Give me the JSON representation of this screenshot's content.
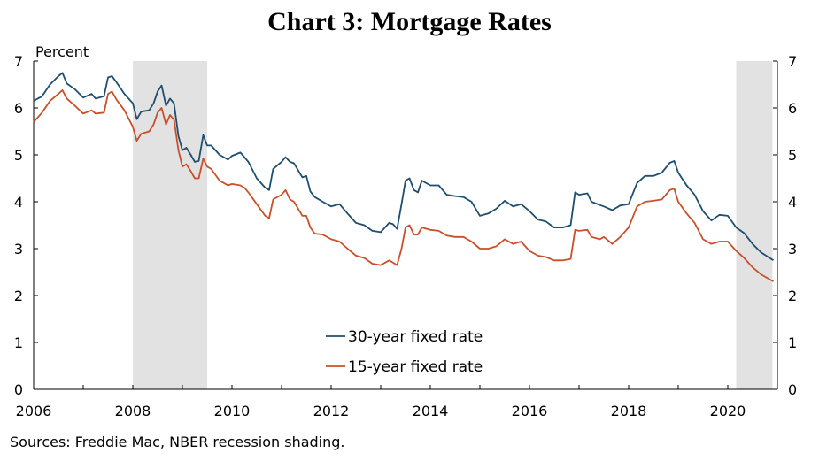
{
  "chart_data": {
    "type": "line",
    "title": "Chart 3: Mortgage Rates",
    "ylabel": "Percent",
    "source": "Sources: Freddie Mac, NBER recession shading.",
    "xlim": [
      2006.0,
      2021.0
    ],
    "ylim": [
      0,
      7
    ],
    "x_ticks": [
      2006,
      2008,
      2010,
      2012,
      2014,
      2016,
      2018,
      2020
    ],
    "y_ticks": [
      0,
      1,
      2,
      3,
      4,
      5,
      6,
      7
    ],
    "grid": false,
    "legend_position": "bottom-center",
    "recessions": [
      {
        "start": 2008.0,
        "end": 2009.5
      },
      {
        "start": 2020.17,
        "end": 2020.9
      }
    ],
    "series": [
      {
        "name": "30-year fixed rate",
        "color": "#1f4e6e",
        "points": [
          [
            2006.0,
            6.15
          ],
          [
            2006.17,
            6.25
          ],
          [
            2006.33,
            6.5
          ],
          [
            2006.5,
            6.68
          ],
          [
            2006.58,
            6.75
          ],
          [
            2006.67,
            6.52
          ],
          [
            2006.83,
            6.4
          ],
          [
            2007.0,
            6.22
          ],
          [
            2007.17,
            6.3
          ],
          [
            2007.25,
            6.2
          ],
          [
            2007.42,
            6.25
          ],
          [
            2007.5,
            6.65
          ],
          [
            2007.58,
            6.68
          ],
          [
            2007.67,
            6.55
          ],
          [
            2007.83,
            6.3
          ],
          [
            2008.0,
            6.1
          ],
          [
            2008.08,
            5.76
          ],
          [
            2008.17,
            5.92
          ],
          [
            2008.33,
            5.95
          ],
          [
            2008.42,
            6.1
          ],
          [
            2008.5,
            6.35
          ],
          [
            2008.58,
            6.48
          ],
          [
            2008.67,
            6.05
          ],
          [
            2008.75,
            6.2
          ],
          [
            2008.83,
            6.1
          ],
          [
            2008.92,
            5.4
          ],
          [
            2009.0,
            5.1
          ],
          [
            2009.08,
            5.15
          ],
          [
            2009.17,
            5.0
          ],
          [
            2009.25,
            4.85
          ],
          [
            2009.33,
            4.87
          ],
          [
            2009.42,
            5.42
          ],
          [
            2009.5,
            5.2
          ],
          [
            2009.58,
            5.2
          ],
          [
            2009.75,
            5.0
          ],
          [
            2009.92,
            4.9
          ],
          [
            2010.0,
            4.98
          ],
          [
            2010.17,
            5.05
          ],
          [
            2010.25,
            4.95
          ],
          [
            2010.33,
            4.85
          ],
          [
            2010.5,
            4.5
          ],
          [
            2010.67,
            4.3
          ],
          [
            2010.75,
            4.25
          ],
          [
            2010.83,
            4.7
          ],
          [
            2011.0,
            4.85
          ],
          [
            2011.08,
            4.95
          ],
          [
            2011.17,
            4.85
          ],
          [
            2011.25,
            4.82
          ],
          [
            2011.42,
            4.52
          ],
          [
            2011.5,
            4.55
          ],
          [
            2011.58,
            4.22
          ],
          [
            2011.67,
            4.1
          ],
          [
            2011.83,
            4.0
          ],
          [
            2012.0,
            3.9
          ],
          [
            2012.17,
            3.95
          ],
          [
            2012.33,
            3.75
          ],
          [
            2012.5,
            3.55
          ],
          [
            2012.67,
            3.5
          ],
          [
            2012.83,
            3.38
          ],
          [
            2013.0,
            3.35
          ],
          [
            2013.17,
            3.55
          ],
          [
            2013.25,
            3.52
          ],
          [
            2013.33,
            3.42
          ],
          [
            2013.42,
            3.95
          ],
          [
            2013.5,
            4.45
          ],
          [
            2013.58,
            4.5
          ],
          [
            2013.67,
            4.25
          ],
          [
            2013.75,
            4.2
          ],
          [
            2013.83,
            4.45
          ],
          [
            2014.0,
            4.35
          ],
          [
            2014.17,
            4.35
          ],
          [
            2014.33,
            4.15
          ],
          [
            2014.5,
            4.12
          ],
          [
            2014.67,
            4.1
          ],
          [
            2014.83,
            4.0
          ],
          [
            2015.0,
            3.7
          ],
          [
            2015.17,
            3.75
          ],
          [
            2015.33,
            3.85
          ],
          [
            2015.5,
            4.02
          ],
          [
            2015.67,
            3.9
          ],
          [
            2015.83,
            3.95
          ],
          [
            2016.0,
            3.8
          ],
          [
            2016.17,
            3.62
          ],
          [
            2016.33,
            3.58
          ],
          [
            2016.5,
            3.45
          ],
          [
            2016.67,
            3.45
          ],
          [
            2016.83,
            3.5
          ],
          [
            2016.92,
            4.2
          ],
          [
            2017.0,
            4.15
          ],
          [
            2017.17,
            4.18
          ],
          [
            2017.25,
            4.0
          ],
          [
            2017.42,
            3.93
          ],
          [
            2017.5,
            3.9
          ],
          [
            2017.67,
            3.82
          ],
          [
            2017.83,
            3.92
          ],
          [
            2018.0,
            3.95
          ],
          [
            2018.17,
            4.4
          ],
          [
            2018.33,
            4.55
          ],
          [
            2018.5,
            4.55
          ],
          [
            2018.67,
            4.62
          ],
          [
            2018.83,
            4.83
          ],
          [
            2018.92,
            4.87
          ],
          [
            2019.0,
            4.62
          ],
          [
            2019.17,
            4.35
          ],
          [
            2019.33,
            4.15
          ],
          [
            2019.5,
            3.8
          ],
          [
            2019.67,
            3.6
          ],
          [
            2019.83,
            3.72
          ],
          [
            2020.0,
            3.7
          ],
          [
            2020.17,
            3.45
          ],
          [
            2020.33,
            3.33
          ],
          [
            2020.5,
            3.1
          ],
          [
            2020.67,
            2.92
          ],
          [
            2020.92,
            2.75
          ]
        ]
      },
      {
        "name": "15-year fixed rate",
        "color": "#c8502a",
        "points": [
          [
            2006.0,
            5.7
          ],
          [
            2006.17,
            5.9
          ],
          [
            2006.33,
            6.15
          ],
          [
            2006.5,
            6.3
          ],
          [
            2006.58,
            6.38
          ],
          [
            2006.67,
            6.2
          ],
          [
            2006.83,
            6.05
          ],
          [
            2007.0,
            5.88
          ],
          [
            2007.17,
            5.95
          ],
          [
            2007.25,
            5.88
          ],
          [
            2007.42,
            5.9
          ],
          [
            2007.5,
            6.3
          ],
          [
            2007.58,
            6.35
          ],
          [
            2007.67,
            6.18
          ],
          [
            2007.83,
            5.95
          ],
          [
            2008.0,
            5.6
          ],
          [
            2008.08,
            5.3
          ],
          [
            2008.17,
            5.45
          ],
          [
            2008.33,
            5.5
          ],
          [
            2008.42,
            5.65
          ],
          [
            2008.5,
            5.9
          ],
          [
            2008.58,
            6.0
          ],
          [
            2008.67,
            5.65
          ],
          [
            2008.75,
            5.85
          ],
          [
            2008.83,
            5.75
          ],
          [
            2008.92,
            5.1
          ],
          [
            2009.0,
            4.75
          ],
          [
            2009.08,
            4.8
          ],
          [
            2009.17,
            4.65
          ],
          [
            2009.25,
            4.5
          ],
          [
            2009.33,
            4.5
          ],
          [
            2009.42,
            4.92
          ],
          [
            2009.5,
            4.75
          ],
          [
            2009.58,
            4.7
          ],
          [
            2009.75,
            4.45
          ],
          [
            2009.92,
            4.35
          ],
          [
            2010.0,
            4.38
          ],
          [
            2010.17,
            4.35
          ],
          [
            2010.25,
            4.3
          ],
          [
            2010.33,
            4.2
          ],
          [
            2010.5,
            3.95
          ],
          [
            2010.67,
            3.7
          ],
          [
            2010.75,
            3.65
          ],
          [
            2010.83,
            4.05
          ],
          [
            2011.0,
            4.15
          ],
          [
            2011.08,
            4.25
          ],
          [
            2011.17,
            4.05
          ],
          [
            2011.25,
            4.0
          ],
          [
            2011.42,
            3.7
          ],
          [
            2011.5,
            3.7
          ],
          [
            2011.58,
            3.45
          ],
          [
            2011.67,
            3.32
          ],
          [
            2011.83,
            3.3
          ],
          [
            2012.0,
            3.2
          ],
          [
            2012.17,
            3.15
          ],
          [
            2012.33,
            3.0
          ],
          [
            2012.5,
            2.85
          ],
          [
            2012.67,
            2.8
          ],
          [
            2012.83,
            2.68
          ],
          [
            2013.0,
            2.65
          ],
          [
            2013.17,
            2.75
          ],
          [
            2013.25,
            2.7
          ],
          [
            2013.33,
            2.65
          ],
          [
            2013.42,
            3.0
          ],
          [
            2013.5,
            3.45
          ],
          [
            2013.58,
            3.5
          ],
          [
            2013.67,
            3.3
          ],
          [
            2013.75,
            3.3
          ],
          [
            2013.83,
            3.45
          ],
          [
            2014.0,
            3.4
          ],
          [
            2014.17,
            3.38
          ],
          [
            2014.33,
            3.28
          ],
          [
            2014.5,
            3.25
          ],
          [
            2014.67,
            3.25
          ],
          [
            2014.83,
            3.15
          ],
          [
            2015.0,
            3.0
          ],
          [
            2015.17,
            3.0
          ],
          [
            2015.33,
            3.05
          ],
          [
            2015.5,
            3.2
          ],
          [
            2015.67,
            3.1
          ],
          [
            2015.83,
            3.15
          ],
          [
            2016.0,
            2.95
          ],
          [
            2016.17,
            2.85
          ],
          [
            2016.33,
            2.82
          ],
          [
            2016.5,
            2.75
          ],
          [
            2016.67,
            2.75
          ],
          [
            2016.83,
            2.78
          ],
          [
            2016.92,
            3.4
          ],
          [
            2017.0,
            3.38
          ],
          [
            2017.17,
            3.4
          ],
          [
            2017.25,
            3.25
          ],
          [
            2017.42,
            3.2
          ],
          [
            2017.5,
            3.25
          ],
          [
            2017.67,
            3.1
          ],
          [
            2017.83,
            3.25
          ],
          [
            2018.0,
            3.45
          ],
          [
            2018.17,
            3.9
          ],
          [
            2018.33,
            4.0
          ],
          [
            2018.5,
            4.02
          ],
          [
            2018.67,
            4.05
          ],
          [
            2018.83,
            4.25
          ],
          [
            2018.92,
            4.28
          ],
          [
            2019.0,
            4.0
          ],
          [
            2019.17,
            3.75
          ],
          [
            2019.33,
            3.55
          ],
          [
            2019.5,
            3.2
          ],
          [
            2019.67,
            3.1
          ],
          [
            2019.83,
            3.15
          ],
          [
            2020.0,
            3.15
          ],
          [
            2020.17,
            2.95
          ],
          [
            2020.33,
            2.8
          ],
          [
            2020.5,
            2.6
          ],
          [
            2020.67,
            2.45
          ],
          [
            2020.92,
            2.3
          ]
        ]
      }
    ]
  }
}
